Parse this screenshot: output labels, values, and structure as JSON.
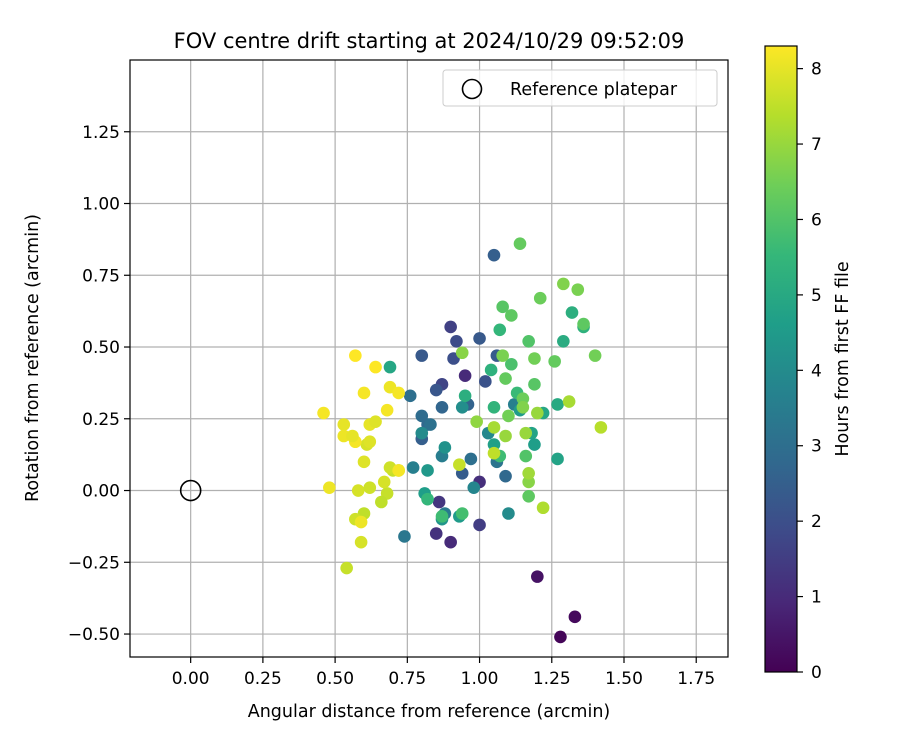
{
  "chart_data": {
    "type": "scatter",
    "title": "FOV centre drift starting at 2024/10/29 09:52:09",
    "xlabel": "Angular distance from reference (arcmin)",
    "ylabel": "Rotation from reference (arcmin)",
    "xlim": [
      -0.21,
      1.86
    ],
    "ylim": [
      -0.58,
      1.5
    ],
    "xticks": [
      "0.00",
      "0.25",
      "0.50",
      "0.75",
      "1.00",
      "1.25",
      "1.50",
      "1.75"
    ],
    "xtick_values": [
      0,
      0.25,
      0.5,
      0.75,
      1.0,
      1.25,
      1.5,
      1.75
    ],
    "yticks": [
      "−0.50",
      "−0.25",
      "0.00",
      "0.25",
      "0.50",
      "0.75",
      "1.00",
      "1.25"
    ],
    "ytick_values": [
      -0.5,
      -0.25,
      0,
      0.25,
      0.5,
      0.75,
      1.0,
      1.25
    ],
    "grid": true,
    "legend": {
      "placement": "top-right",
      "entries": [
        "Reference platepar"
      ]
    },
    "reference_point": {
      "x": 0.0,
      "y": 0.0,
      "label": "Reference platepar"
    },
    "colorbar": {
      "label": "Hours from first FF file",
      "colormap": "viridis",
      "range": [
        0,
        8.3
      ],
      "ticks": [
        "0",
        "1",
        "2",
        "3",
        "4",
        "5",
        "6",
        "7",
        "8"
      ],
      "tick_values": [
        0,
        1,
        2,
        3,
        4,
        5,
        6,
        7,
        8
      ]
    },
    "points": [
      {
        "x": 1.33,
        "y": -0.44,
        "hours": 0.2
      },
      {
        "x": 1.28,
        "y": -0.51,
        "hours": 0.1
      },
      {
        "x": 1.2,
        "y": -0.3,
        "hours": 0.4
      },
      {
        "x": 0.9,
        "y": -0.18,
        "hours": 1.0
      },
      {
        "x": 0.85,
        "y": -0.15,
        "hours": 1.2
      },
      {
        "x": 1.0,
        "y": -0.12,
        "hours": 1.5
      },
      {
        "x": 0.86,
        "y": -0.04,
        "hours": 1.3
      },
      {
        "x": 1.0,
        "y": 0.03,
        "hours": 1.1
      },
      {
        "x": 0.95,
        "y": 0.4,
        "hours": 1.0
      },
      {
        "x": 0.9,
        "y": 0.57,
        "hours": 1.6
      },
      {
        "x": 0.92,
        "y": 0.52,
        "hours": 1.9
      },
      {
        "x": 0.91,
        "y": 0.46,
        "hours": 2.0
      },
      {
        "x": 0.87,
        "y": 0.37,
        "hours": 1.7
      },
      {
        "x": 0.85,
        "y": 0.35,
        "hours": 2.2
      },
      {
        "x": 1.0,
        "y": 0.53,
        "hours": 2.3
      },
      {
        "x": 1.05,
        "y": 0.82,
        "hours": 2.5
      },
      {
        "x": 1.06,
        "y": 0.47,
        "hours": 2.4
      },
      {
        "x": 1.02,
        "y": 0.38,
        "hours": 2.1
      },
      {
        "x": 0.96,
        "y": 0.3,
        "hours": 2.6
      },
      {
        "x": 0.8,
        "y": 0.47,
        "hours": 2.3
      },
      {
        "x": 0.82,
        "y": 0.23,
        "hours": 2.8
      },
      {
        "x": 0.8,
        "y": 0.18,
        "hours": 2.5
      },
      {
        "x": 0.8,
        "y": 0.26,
        "hours": 2.9
      },
      {
        "x": 0.87,
        "y": 0.29,
        "hours": 2.7
      },
      {
        "x": 0.94,
        "y": 0.06,
        "hours": 2.4
      },
      {
        "x": 0.97,
        "y": 0.11,
        "hours": 3.0
      },
      {
        "x": 1.06,
        "y": 0.1,
        "hours": 3.2
      },
      {
        "x": 1.09,
        "y": 0.05,
        "hours": 2.8
      },
      {
        "x": 0.76,
        "y": 0.33,
        "hours": 3.0
      },
      {
        "x": 0.74,
        "y": -0.16,
        "hours": 3.3
      },
      {
        "x": 0.88,
        "y": -0.08,
        "hours": 3.4
      },
      {
        "x": 0.87,
        "y": 0.12,
        "hours": 3.5
      },
      {
        "x": 0.83,
        "y": 0.23,
        "hours": 3.1
      },
      {
        "x": 0.77,
        "y": 0.08,
        "hours": 3.6
      },
      {
        "x": 0.98,
        "y": 0.01,
        "hours": 3.8
      },
      {
        "x": 1.12,
        "y": 0.3,
        "hours": 3.6
      },
      {
        "x": 1.03,
        "y": 0.2,
        "hours": 3.9
      },
      {
        "x": 1.1,
        "y": -0.08,
        "hours": 4.0
      },
      {
        "x": 0.94,
        "y": 0.29,
        "hours": 4.1
      },
      {
        "x": 0.88,
        "y": 0.15,
        "hours": 4.2
      },
      {
        "x": 0.87,
        "y": -0.1,
        "hours": 4.3
      },
      {
        "x": 0.8,
        "y": 0.2,
        "hours": 4.0
      },
      {
        "x": 0.82,
        "y": 0.07,
        "hours": 4.4
      },
      {
        "x": 0.81,
        "y": -0.01,
        "hours": 4.6
      },
      {
        "x": 0.93,
        "y": -0.09,
        "hours": 4.5
      },
      {
        "x": 1.05,
        "y": 0.16,
        "hours": 4.7
      },
      {
        "x": 1.18,
        "y": 0.2,
        "hours": 4.8
      },
      {
        "x": 1.19,
        "y": 0.16,
        "hours": 4.6
      },
      {
        "x": 1.22,
        "y": 0.27,
        "hours": 4.9
      },
      {
        "x": 1.14,
        "y": 0.28,
        "hours": 4.5
      },
      {
        "x": 1.27,
        "y": 0.11,
        "hours": 4.8
      },
      {
        "x": 1.27,
        "y": 0.3,
        "hours": 5.0
      },
      {
        "x": 1.29,
        "y": 0.52,
        "hours": 5.1
      },
      {
        "x": 1.32,
        "y": 0.62,
        "hours": 5.2
      },
      {
        "x": 1.36,
        "y": 0.57,
        "hours": 5.3
      },
      {
        "x": 0.69,
        "y": 0.43,
        "hours": 4.9
      },
      {
        "x": 0.95,
        "y": 0.33,
        "hours": 5.2
      },
      {
        "x": 1.04,
        "y": 0.42,
        "hours": 5.3
      },
      {
        "x": 1.07,
        "y": 0.56,
        "hours": 5.5
      },
      {
        "x": 1.13,
        "y": 0.34,
        "hours": 5.6
      },
      {
        "x": 1.05,
        "y": 0.29,
        "hours": 5.4
      },
      {
        "x": 1.07,
        "y": 0.12,
        "hours": 5.7
      },
      {
        "x": 0.82,
        "y": -0.03,
        "hours": 5.5
      },
      {
        "x": 0.94,
        "y": -0.08,
        "hours": 5.8
      },
      {
        "x": 0.87,
        "y": -0.09,
        "hours": 5.7
      },
      {
        "x": 1.11,
        "y": 0.44,
        "hours": 5.9
      },
      {
        "x": 1.17,
        "y": 0.52,
        "hours": 6.0
      },
      {
        "x": 1.08,
        "y": 0.64,
        "hours": 6.1
      },
      {
        "x": 1.11,
        "y": 0.61,
        "hours": 6.2
      },
      {
        "x": 1.14,
        "y": 0.86,
        "hours": 6.3
      },
      {
        "x": 1.21,
        "y": 0.67,
        "hours": 6.4
      },
      {
        "x": 1.26,
        "y": 0.45,
        "hours": 6.3
      },
      {
        "x": 1.34,
        "y": 0.7,
        "hours": 6.6
      },
      {
        "x": 1.29,
        "y": 0.72,
        "hours": 6.7
      },
      {
        "x": 1.4,
        "y": 0.47,
        "hours": 6.5
      },
      {
        "x": 1.36,
        "y": 0.58,
        "hours": 6.2
      },
      {
        "x": 1.19,
        "y": 0.37,
        "hours": 6.1
      },
      {
        "x": 1.16,
        "y": 0.12,
        "hours": 6.0
      },
      {
        "x": 1.17,
        "y": -0.02,
        "hours": 6.2
      },
      {
        "x": 1.15,
        "y": 0.32,
        "hours": 6.4
      },
      {
        "x": 1.19,
        "y": 0.46,
        "hours": 6.5
      },
      {
        "x": 1.09,
        "y": 0.39,
        "hours": 6.3
      },
      {
        "x": 1.08,
        "y": 0.47,
        "hours": 6.6
      },
      {
        "x": 1.1,
        "y": 0.26,
        "hours": 6.5
      },
      {
        "x": 0.94,
        "y": 0.48,
        "hours": 6.8
      },
      {
        "x": 0.99,
        "y": 0.24,
        "hours": 6.9
      },
      {
        "x": 1.09,
        "y": 0.19,
        "hours": 7.0
      },
      {
        "x": 1.05,
        "y": 0.22,
        "hours": 7.2
      },
      {
        "x": 1.15,
        "y": 0.29,
        "hours": 6.7
      },
      {
        "x": 1.2,
        "y": 0.27,
        "hours": 7.0
      },
      {
        "x": 1.17,
        "y": 0.03,
        "hours": 6.8
      },
      {
        "x": 1.17,
        "y": 0.06,
        "hours": 7.1
      },
      {
        "x": 1.22,
        "y": -0.06,
        "hours": 7.3
      },
      {
        "x": 1.31,
        "y": 0.31,
        "hours": 7.2
      },
      {
        "x": 1.16,
        "y": 0.2,
        "hours": 7.0
      },
      {
        "x": 1.42,
        "y": 0.22,
        "hours": 7.4
      },
      {
        "x": 1.05,
        "y": 0.13,
        "hours": 7.5
      },
      {
        "x": 0.93,
        "y": 0.09,
        "hours": 7.6
      },
      {
        "x": 0.7,
        "y": 0.07,
        "hours": 7.6
      },
      {
        "x": 0.72,
        "y": 0.07,
        "hours": 7.4
      },
      {
        "x": 0.68,
        "y": -0.01,
        "hours": 7.6
      },
      {
        "x": 0.66,
        "y": -0.04,
        "hours": 7.5
      },
      {
        "x": 0.69,
        "y": 0.08,
        "hours": 7.7
      },
      {
        "x": 0.6,
        "y": -0.08,
        "hours": 7.5
      },
      {
        "x": 0.57,
        "y": -0.1,
        "hours": 7.7
      },
      {
        "x": 0.59,
        "y": -0.18,
        "hours": 7.8
      },
      {
        "x": 0.54,
        "y": -0.27,
        "hours": 7.6
      },
      {
        "x": 0.58,
        "y": 0.0,
        "hours": 7.8
      },
      {
        "x": 0.62,
        "y": 0.01,
        "hours": 7.7
      },
      {
        "x": 0.67,
        "y": 0.03,
        "hours": 7.8
      },
      {
        "x": 0.6,
        "y": 0.1,
        "hours": 7.9
      },
      {
        "x": 0.61,
        "y": 0.16,
        "hours": 7.8
      },
      {
        "x": 0.62,
        "y": 0.17,
        "hours": 7.9
      },
      {
        "x": 0.62,
        "y": 0.23,
        "hours": 8.0
      },
      {
        "x": 0.64,
        "y": 0.24,
        "hours": 7.9
      },
      {
        "x": 0.53,
        "y": 0.23,
        "hours": 8.0
      },
      {
        "x": 0.53,
        "y": 0.19,
        "hours": 8.1
      },
      {
        "x": 0.57,
        "y": 0.17,
        "hours": 8.2
      },
      {
        "x": 0.56,
        "y": 0.19,
        "hours": 8.0
      },
      {
        "x": 0.59,
        "y": -0.11,
        "hours": 8.1
      },
      {
        "x": 0.48,
        "y": 0.01,
        "hours": 8.1
      },
      {
        "x": 0.46,
        "y": 0.27,
        "hours": 8.2
      },
      {
        "x": 0.68,
        "y": 0.28,
        "hours": 8.2
      },
      {
        "x": 0.6,
        "y": 0.34,
        "hours": 8.2
      },
      {
        "x": 0.69,
        "y": 0.36,
        "hours": 8.1
      },
      {
        "x": 0.72,
        "y": 0.34,
        "hours": 8.2
      },
      {
        "x": 0.64,
        "y": 0.43,
        "hours": 8.3
      },
      {
        "x": 0.57,
        "y": 0.47,
        "hours": 8.3
      },
      {
        "x": 0.72,
        "y": 0.07,
        "hours": 8.2
      }
    ]
  }
}
